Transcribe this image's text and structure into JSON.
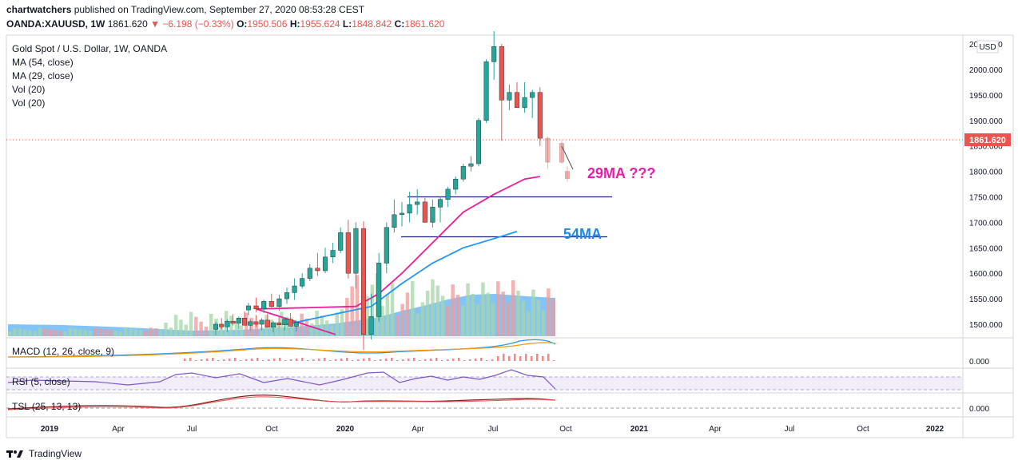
{
  "header": {
    "publisher": "chartwatchers",
    "published_text": "published on TradingView.com, September 27, 2020 08:53:28 CEST",
    "symbol": "OANDA:XAUUSD, 1W",
    "last": "1861.620",
    "change": "−6.198 (−0.33%)",
    "o_label": "O:",
    "o": "1950.506",
    "h_label": "H:",
    "h": "1955.624",
    "l_label": "L:",
    "l": "1848.842",
    "c_label": "C:",
    "c": "1861.620"
  },
  "legend": {
    "title": "Gold Spot / U.S. Dollar, 1W, OANDA",
    "ma54": "MA (54, close)",
    "ma29": "MA (29, close)",
    "vol1": "Vol (20)",
    "vol2": "Vol (20)"
  },
  "indicators": {
    "macd": "MACD (12, 26, close, 9)",
    "rsi": "RSI (5, close)",
    "tsl": "TSL (25, 13, 13)"
  },
  "currency": "USD",
  "price_tag": "1861.620",
  "annotations": {
    "ma29": "29MA ???",
    "ma54": "54MA"
  },
  "footer": {
    "brand": "TradingView"
  },
  "colors": {
    "up": "#26a69a",
    "down": "#ef5350",
    "ma29": "#e91e98",
    "ma54": "#2196f3",
    "volume_area": "#64b5f6",
    "hline": "#1a237e",
    "annot_pink": "#e91ea8",
    "annot_blue": "#1e88e5"
  },
  "chart_data": {
    "type": "candlestick",
    "price_axis_ticks": [
      "2050.000",
      "2000.000",
      "1950.000",
      "1900.000",
      "1850.000",
      "1800.000",
      "1750.000",
      "1700.000",
      "1650.000",
      "1600.000",
      "1550.000",
      "1500.000"
    ],
    "macd_tick": "0.000",
    "tsl_tick": "0.000",
    "time_axis_ticks": [
      "2019",
      "Apr",
      "Jul",
      "Oct",
      "2020",
      "Apr",
      "Jul",
      "Oct",
      "2021",
      "Apr",
      "Jul",
      "Oct",
      "2022"
    ],
    "candles": [
      [
        1528,
        1542,
        1518,
        1536
      ],
      [
        1536,
        1552,
        1524,
        1530
      ],
      [
        1530,
        1548,
        1522,
        1545
      ],
      [
        1545,
        1560,
        1530,
        1535
      ],
      [
        1535,
        1558,
        1527,
        1550
      ],
      [
        1550,
        1572,
        1540,
        1562
      ],
      [
        1562,
        1590,
        1548,
        1575
      ],
      [
        1575,
        1600,
        1570,
        1590
      ],
      [
        1590,
        1618,
        1585,
        1610
      ],
      [
        1610,
        1640,
        1595,
        1605
      ],
      [
        1605,
        1650,
        1600,
        1632
      ],
      [
        1632,
        1660,
        1620,
        1645
      ],
      [
        1645,
        1690,
        1640,
        1680
      ],
      [
        1680,
        1705,
        1590,
        1600
      ],
      [
        1600,
        1700,
        1570,
        1688
      ],
      [
        1688,
        1702,
        1450,
        1480
      ],
      [
        1480,
        1560,
        1470,
        1515
      ],
      [
        1515,
        1640,
        1505,
        1620
      ],
      [
        1620,
        1700,
        1600,
        1690
      ],
      [
        1690,
        1745,
        1680,
        1715
      ],
      [
        1715,
        1740,
        1692,
        1718
      ],
      [
        1718,
        1760,
        1700,
        1735
      ],
      [
        1735,
        1765,
        1715,
        1740
      ],
      [
        1740,
        1748,
        1705,
        1700
      ],
      [
        1700,
        1745,
        1690,
        1730
      ],
      [
        1730,
        1750,
        1700,
        1745
      ],
      [
        1745,
        1770,
        1730,
        1765
      ],
      [
        1765,
        1790,
        1755,
        1785
      ],
      [
        1785,
        1815,
        1780,
        1810
      ],
      [
        1810,
        1830,
        1800,
        1815
      ],
      [
        1815,
        1905,
        1810,
        1900
      ],
      [
        1900,
        2020,
        1895,
        2015
      ],
      [
        2015,
        2075,
        1980,
        2045
      ],
      [
        2045,
        2050,
        1860,
        1940
      ],
      [
        1940,
        1970,
        1920,
        1955
      ],
      [
        1955,
        1975,
        1930,
        1925
      ],
      [
        1925,
        1975,
        1915,
        1945
      ],
      [
        1945,
        1960,
        1905,
        1955
      ],
      [
        1955,
        1965,
        1850,
        1865
      ],
      [
        1865,
        1868,
        1805,
        1818
      ],
      [
        1950.506,
        1955.624,
        1848.842,
        1861.62
      ]
    ],
    "ma29_points": [
      [
        1,
        1530
      ],
      [
        14,
        1535
      ],
      [
        17,
        1560
      ],
      [
        20,
        1600
      ],
      [
        24,
        1660
      ],
      [
        28,
        1720
      ],
      [
        32,
        1755
      ],
      [
        36,
        1785
      ],
      [
        38,
        1790
      ]
    ],
    "ma54_points": [
      [
        5,
        1500
      ],
      [
        16,
        1535
      ],
      [
        20,
        1580
      ],
      [
        24,
        1620
      ],
      [
        28,
        1650
      ],
      [
        32,
        1668
      ],
      [
        35,
        1682
      ]
    ],
    "hlines": [
      1750,
      1670
    ]
  }
}
